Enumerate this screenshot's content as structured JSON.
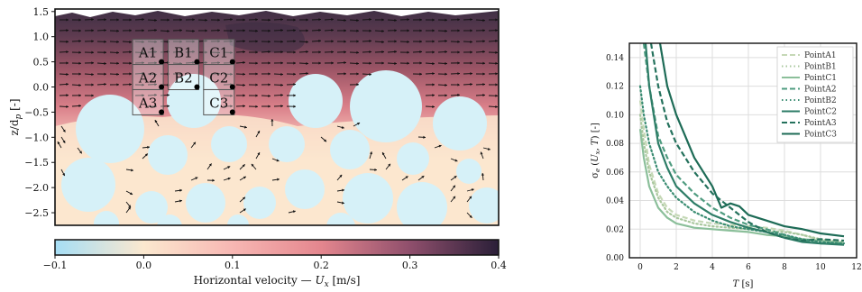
{
  "chart_data": [
    {
      "type": "heatmap",
      "ylabel": "z/d_p [-]",
      "ylim": [
        -2.75,
        1.55
      ],
      "yticks": [
        "1.5",
        "1.0",
        "0.5",
        "0.0",
        "−0.5",
        "−1.0",
        "−1.5",
        "−2.0",
        "−2.5"
      ],
      "ytick_values": [
        1.5,
        1.0,
        0.5,
        0.0,
        -0.5,
        -1.0,
        -1.5,
        -2.0,
        -2.5
      ],
      "xlim": [
        -0.1,
        0.4
      ],
      "points": [
        {
          "label": "A1",
          "x": 0.02,
          "z": 0.5
        },
        {
          "label": "B1",
          "x": 0.06,
          "z": 0.5
        },
        {
          "label": "C1",
          "x": 0.1,
          "z": 0.5
        },
        {
          "label": "A2",
          "x": 0.02,
          "z": 0.0
        },
        {
          "label": "B2",
          "x": 0.06,
          "z": 0.0
        },
        {
          "label": "C2",
          "x": 0.1,
          "z": 0.0
        },
        {
          "label": "A3",
          "x": 0.02,
          "z": -0.5
        },
        {
          "label": "C3",
          "x": 0.1,
          "z": -0.5
        }
      ],
      "colorbar": {
        "label": "Horizontal velocity — U_x [m/s]",
        "range": [
          -0.1,
          0.4
        ],
        "ticks": [
          "−0.1",
          "0.0",
          "0.1",
          "0.2",
          "0.3",
          "0.4"
        ],
        "tick_values": [
          -0.1,
          0.0,
          0.1,
          0.2,
          0.3,
          0.4
        ],
        "colors": [
          "#a6def5",
          "#fbe8cf",
          "#f7b7b3",
          "#e4868e",
          "#8f4f6c",
          "#2a1f38"
        ]
      },
      "colors": {
        "grain": "#d6f1f8",
        "pore": "#fbe6cf",
        "flow_high": "#cf6f80",
        "flow_top": "#3e2f44"
      }
    },
    {
      "type": "line",
      "xlabel": "T [s]",
      "ylabel": "σ_e (U_x, T) [-]",
      "xlim": [
        -0.6,
        12
      ],
      "ylim": [
        0,
        0.15
      ],
      "xticks": [
        "0",
        "2",
        "4",
        "6",
        "8",
        "10",
        "12"
      ],
      "xtick_values": [
        0,
        2,
        4,
        6,
        8,
        10,
        12
      ],
      "yticks": [
        "0.00",
        "0.02",
        "0.04",
        "0.06",
        "0.08",
        "0.10",
        "0.12",
        "0.14"
      ],
      "ytick_values": [
        0,
        0.02,
        0.04,
        0.06,
        0.08,
        0.1,
        0.12,
        0.14
      ],
      "grid": true,
      "legend": "top-right",
      "series": [
        {
          "name": "PointA1",
          "color": "#c5d8b6",
          "dash": "dashed",
          "x": [
            0,
            0.2,
            0.5,
            1,
            1.5,
            2,
            3,
            4,
            5,
            6,
            7,
            8,
            9,
            10,
            11.3
          ],
          "y": [
            0.11,
            0.09,
            0.065,
            0.045,
            0.035,
            0.03,
            0.026,
            0.024,
            0.023,
            0.022,
            0.021,
            0.019,
            0.016,
            0.012,
            0.01
          ]
        },
        {
          "name": "PointB1",
          "color": "#a9c79e",
          "dash": "dotted",
          "x": [
            0,
            0.2,
            0.5,
            1,
            1.5,
            2,
            3,
            4,
            5,
            6,
            7,
            8,
            9,
            10,
            11.3
          ],
          "y": [
            0.1,
            0.08,
            0.06,
            0.042,
            0.032,
            0.028,
            0.024,
            0.022,
            0.021,
            0.02,
            0.019,
            0.018,
            0.016,
            0.013,
            0.011
          ]
        },
        {
          "name": "PointC1",
          "color": "#8bbf9a",
          "dash": "solid",
          "x": [
            0,
            0.2,
            0.5,
            1,
            1.5,
            2,
            3,
            4,
            5,
            6,
            7,
            8,
            9,
            10,
            11.3
          ],
          "y": [
            0.09,
            0.07,
            0.05,
            0.035,
            0.028,
            0.024,
            0.021,
            0.02,
            0.019,
            0.018,
            0.016,
            0.015,
            0.013,
            0.012,
            0.01
          ]
        },
        {
          "name": "PointA2",
          "color": "#4f9c80",
          "dash": "dashed",
          "x": [
            0.2,
            0.5,
            1,
            1.5,
            2,
            3,
            4,
            5,
            6,
            7,
            8,
            9,
            10,
            11.3
          ],
          "y": [
            0.15,
            0.12,
            0.085,
            0.07,
            0.058,
            0.045,
            0.035,
            0.028,
            0.023,
            0.02,
            0.016,
            0.012,
            0.01,
            0.01
          ]
        },
        {
          "name": "PointB2",
          "color": "#3b8d73",
          "dash": "dotted",
          "x": [
            0,
            0.2,
            0.5,
            1,
            1.5,
            2,
            3,
            4,
            5,
            6,
            7,
            8,
            9,
            10,
            11.3
          ],
          "y": [
            0.12,
            0.1,
            0.08,
            0.06,
            0.05,
            0.042,
            0.032,
            0.026,
            0.022,
            0.02,
            0.018,
            0.016,
            0.013,
            0.011,
            0.01
          ]
        },
        {
          "name": "PointC2",
          "color": "#2e7d67",
          "dash": "solid",
          "x": [
            0.3,
            0.5,
            1,
            1.5,
            2,
            3,
            4,
            5,
            6,
            7,
            8,
            9,
            10,
            11.3
          ],
          "y": [
            0.15,
            0.12,
            0.08,
            0.063,
            0.05,
            0.038,
            0.03,
            0.025,
            0.021,
            0.018,
            0.014,
            0.011,
            0.01,
            0.009
          ]
        },
        {
          "name": "PointA3",
          "color": "#24715c",
          "dash": "dashed",
          "x": [
            0.6,
            1,
            1.5,
            2,
            3,
            4,
            5,
            6,
            7,
            8,
            9,
            10,
            11.3
          ],
          "y": [
            0.15,
            0.12,
            0.095,
            0.08,
            0.06,
            0.045,
            0.035,
            0.025,
            0.018,
            0.014,
            0.012,
            0.013,
            0.012
          ]
        },
        {
          "name": "PointC3",
          "color": "#1d6b56",
          "dash": "solid",
          "x": [
            1.1,
            1.5,
            2,
            2.5,
            3,
            3.5,
            4,
            4.5,
            5,
            5.5,
            6,
            7,
            8,
            9,
            10,
            11.3
          ],
          "y": [
            0.15,
            0.12,
            0.1,
            0.085,
            0.07,
            0.06,
            0.05,
            0.035,
            0.038,
            0.036,
            0.03,
            0.026,
            0.022,
            0.02,
            0.017,
            0.015
          ]
        }
      ]
    }
  ]
}
